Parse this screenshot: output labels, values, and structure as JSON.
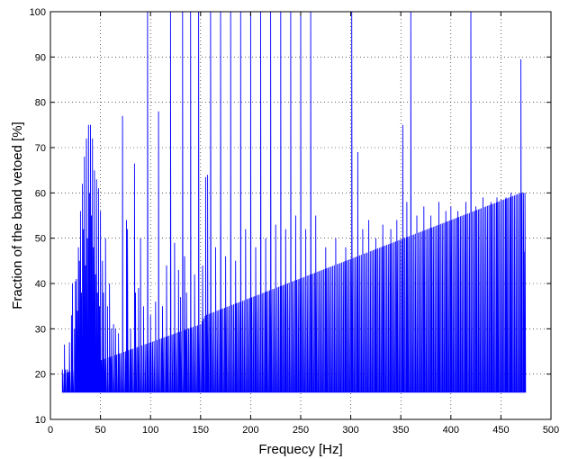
{
  "chart_data": {
    "type": "line",
    "title": "",
    "xlabel": "Frequecy [Hz]",
    "ylabel": "Fraction of the band vetoed [%]",
    "xlim": [
      0,
      500
    ],
    "ylim": [
      10,
      100
    ],
    "xticks": [
      0,
      50,
      100,
      150,
      200,
      250,
      300,
      350,
      400,
      450,
      500
    ],
    "yticks": [
      10,
      20,
      30,
      40,
      50,
      60,
      70,
      80,
      90,
      100
    ],
    "grid": true,
    "grid_style": "dotted",
    "legend": "none",
    "series": [
      {
        "color": "#0000ff",
        "baseline": 16,
        "x_range": [
          12,
          475
        ],
        "trend": [
          [
            12,
            20
          ],
          [
            150,
            31
          ],
          [
            155,
            33
          ],
          [
            470,
            60
          ]
        ],
        "spikes": [
          [
            12,
            21
          ],
          [
            14,
            26.5
          ],
          [
            15,
            21
          ],
          [
            17,
            21
          ],
          [
            19,
            27
          ],
          [
            21,
            33
          ],
          [
            22,
            40
          ],
          [
            24,
            30
          ],
          [
            25,
            40.5
          ],
          [
            26,
            41
          ],
          [
            27,
            34
          ],
          [
            28,
            48
          ],
          [
            29,
            45
          ],
          [
            30,
            56
          ],
          [
            31,
            38
          ],
          [
            32,
            62
          ],
          [
            33,
            52
          ],
          [
            34,
            68
          ],
          [
            35,
            44
          ],
          [
            36,
            72
          ],
          [
            37,
            50
          ],
          [
            38,
            75
          ],
          [
            39,
            60
          ],
          [
            40,
            75
          ],
          [
            41,
            55
          ],
          [
            42,
            72
          ],
          [
            43,
            48
          ],
          [
            44,
            65
          ],
          [
            45,
            42
          ],
          [
            46,
            63
          ],
          [
            47,
            38
          ],
          [
            48,
            61
          ],
          [
            49,
            35
          ],
          [
            50,
            56
          ],
          [
            52,
            45
          ],
          [
            53,
            38
          ],
          [
            55,
            50
          ],
          [
            57,
            35
          ],
          [
            59,
            40
          ],
          [
            61,
            30
          ],
          [
            63,
            31
          ],
          [
            65,
            30
          ],
          [
            68,
            29
          ],
          [
            72,
            77
          ],
          [
            76,
            54
          ],
          [
            77,
            52
          ],
          [
            80,
            30
          ],
          [
            84,
            66.5
          ],
          [
            85,
            38
          ],
          [
            88,
            39
          ],
          [
            90,
            50
          ],
          [
            93,
            35
          ],
          [
            97,
            100
          ],
          [
            100,
            33
          ],
          [
            105,
            36
          ],
          [
            108,
            78
          ],
          [
            112,
            35
          ],
          [
            116,
            44
          ],
          [
            120,
            100
          ],
          [
            124,
            49
          ],
          [
            128,
            43
          ],
          [
            130,
            37
          ],
          [
            132,
            100
          ],
          [
            134,
            46
          ],
          [
            136,
            38
          ],
          [
            140,
            100
          ],
          [
            144,
            42
          ],
          [
            148,
            100
          ],
          [
            152,
            44
          ],
          [
            155,
            63.5
          ],
          [
            157,
            64
          ],
          [
            160,
            100
          ],
          [
            165,
            48
          ],
          [
            170,
            100
          ],
          [
            175,
            46
          ],
          [
            180,
            100
          ],
          [
            185,
            45
          ],
          [
            190,
            100
          ],
          [
            195,
            52
          ],
          [
            200,
            100
          ],
          [
            205,
            48
          ],
          [
            210,
            100
          ],
          [
            215,
            50
          ],
          [
            220,
            100
          ],
          [
            225,
            53
          ],
          [
            230,
            100
          ],
          [
            235,
            52
          ],
          [
            240,
            100
          ],
          [
            245,
            55
          ],
          [
            250,
            100
          ],
          [
            255,
            52
          ],
          [
            260,
            100
          ],
          [
            265,
            55
          ],
          [
            275,
            48
          ],
          [
            285,
            50
          ],
          [
            295,
            48
          ],
          [
            301,
            100
          ],
          [
            307,
            69
          ],
          [
            312,
            52
          ],
          [
            318,
            54
          ],
          [
            325,
            50
          ],
          [
            332,
            53
          ],
          [
            340,
            52
          ],
          [
            346,
            54
          ],
          [
            352,
            75
          ],
          [
            356,
            58
          ],
          [
            360,
            100
          ],
          [
            366,
            55
          ],
          [
            373,
            57
          ],
          [
            380,
            55
          ],
          [
            388,
            58
          ],
          [
            395,
            56
          ],
          [
            400,
            57
          ],
          [
            407,
            56
          ],
          [
            415,
            58
          ],
          [
            420,
            100
          ],
          [
            425,
            57
          ],
          [
            432,
            59
          ],
          [
            440,
            58
          ],
          [
            446,
            59
          ],
          [
            450,
            58.5
          ],
          [
            455,
            59
          ],
          [
            460,
            60
          ],
          [
            465,
            59.5
          ],
          [
            468,
            58
          ],
          [
            470,
            89.5
          ],
          [
            473,
            47
          ]
        ]
      }
    ]
  }
}
